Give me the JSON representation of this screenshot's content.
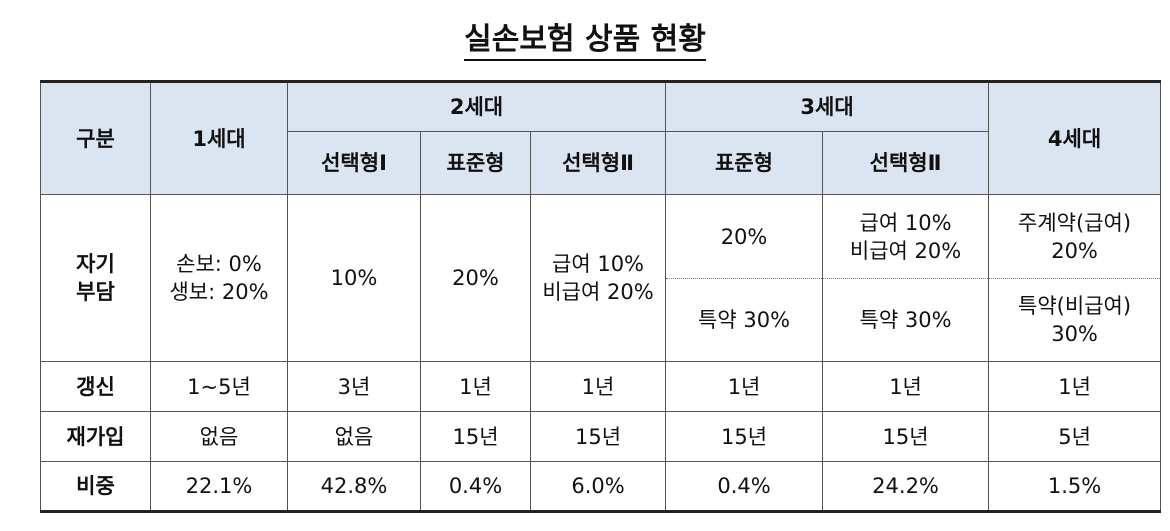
{
  "title": "실손보험 상품 현황",
  "header_top": [
    "구분",
    "1세대",
    "2세대",
    "3세대",
    "4세대"
  ],
  "header_sub": [
    "선택형Ⅰ",
    "표준형",
    "선택형Ⅱ",
    "표준형",
    "선택형Ⅱ"
  ],
  "copay_row": {
    "label": [
      "자기",
      "부담"
    ],
    "cells": [
      [
        "손보: 0%",
        "생보: 20%"
      ],
      [
        "10%"
      ],
      [
        "20%"
      ],
      [
        "급여 10%",
        "비급여 20%"
      ],
      [
        "20%"
      ],
      [
        "급여 10%",
        "비급여 20%"
      ],
      [
        "주계약(급여)",
        "20%"
      ]
    ]
  },
  "copay_sub": [
    [
      "특약 30%"
    ],
    [
      "특약 30%"
    ],
    [
      "특약(비급여)",
      "30%"
    ]
  ],
  "rows": [
    {
      "label": "갱신",
      "cells": [
        "1~5년",
        "3년",
        "1년",
        "1년",
        "1년",
        "1년",
        "1년"
      ]
    },
    {
      "label": "재가입",
      "cells": [
        "없음",
        "없음",
        "15년",
        "15년",
        "15년",
        "15년",
        "5년"
      ]
    },
    {
      "label": "비중",
      "cells": [
        "22.1%",
        "42.8%",
        "0.4%",
        "6.0%",
        "0.4%",
        "24.2%",
        "1.5%"
      ]
    }
  ]
}
